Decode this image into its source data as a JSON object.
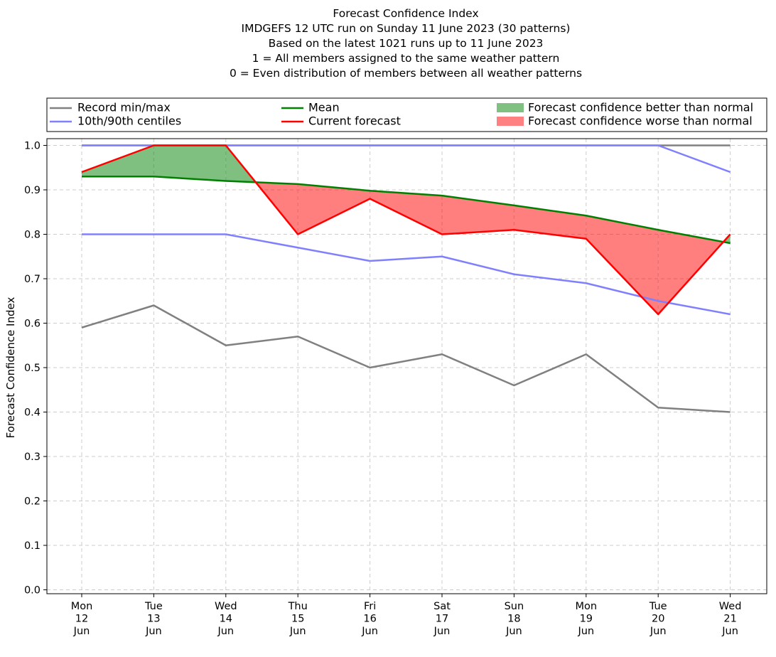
{
  "chart_data": {
    "type": "line",
    "title_lines": [
      "Forecast Confidence Index",
      "IMDGEFS 12 UTC run on Sunday 11 June 2023 (30 patterns)",
      "Based on the latest 1021 runs up to 11 June 2023",
      "1 = All members assigned to the same weather pattern",
      "0 = Even distribution of members between all weather patterns"
    ],
    "ylabel": "Forecast Confidence Index",
    "xlabel": "",
    "ylim": [
      0.0,
      1.0
    ],
    "y_ticks": [
      "0.0",
      "0.1",
      "0.2",
      "0.3",
      "0.4",
      "0.5",
      "0.6",
      "0.7",
      "0.8",
      "0.9",
      "1.0"
    ],
    "grid": true,
    "legend_position": "top, above plot",
    "categories": [
      [
        "Mon",
        "12",
        "Jun"
      ],
      [
        "Tue",
        "13",
        "Jun"
      ],
      [
        "Wed",
        "14",
        "Jun"
      ],
      [
        "Thu",
        "15",
        "Jun"
      ],
      [
        "Fri",
        "16",
        "Jun"
      ],
      [
        "Sat",
        "17",
        "Jun"
      ],
      [
        "Sun",
        "18",
        "Jun"
      ],
      [
        "Mon",
        "19",
        "Jun"
      ],
      [
        "Tue",
        "20",
        "Jun"
      ],
      [
        "Wed",
        "21",
        "Jun"
      ]
    ],
    "series": [
      {
        "key": "record_min",
        "name": "Record min/max",
        "color": "#808080",
        "values": [
          0.59,
          0.64,
          0.55,
          0.57,
          0.5,
          0.53,
          0.46,
          0.53,
          0.41,
          0.4
        ]
      },
      {
        "key": "record_max",
        "name": "Record min/max",
        "color": "#808080",
        "values": [
          1.0,
          1.0,
          1.0,
          1.0,
          1.0,
          1.0,
          1.0,
          1.0,
          1.0,
          1.0
        ]
      },
      {
        "key": "p10",
        "name": "10th/90th centiles",
        "color": "#8080ff",
        "values": [
          0.8,
          0.8,
          0.8,
          0.77,
          0.74,
          0.75,
          0.71,
          0.69,
          0.65,
          0.62
        ]
      },
      {
        "key": "p90",
        "name": "10th/90th centiles",
        "color": "#8080ff",
        "values": [
          1.0,
          1.0,
          1.0,
          1.0,
          1.0,
          1.0,
          1.0,
          1.0,
          1.0,
          0.94
        ]
      },
      {
        "key": "mean",
        "name": "Mean",
        "color": "#008000",
        "values": [
          0.93,
          0.93,
          0.92,
          0.913,
          0.898,
          0.887,
          0.865,
          0.842,
          0.81,
          0.78
        ]
      },
      {
        "key": "current",
        "name": "Current forecast",
        "color": "#ff0000",
        "values": [
          0.94,
          1.0,
          1.0,
          0.8,
          0.88,
          0.8,
          0.81,
          0.79,
          0.62,
          0.8
        ]
      }
    ],
    "fills": [
      {
        "name": "Forecast confidence better than normal",
        "color": "#008000",
        "opacity": 0.5,
        "where": "current > mean"
      },
      {
        "name": "Forecast confidence worse than normal",
        "color": "#ff0000",
        "opacity": 0.5,
        "where": "current < mean"
      }
    ],
    "legend": [
      {
        "label": "Record min/max",
        "kind": "line",
        "color": "#808080"
      },
      {
        "label": "10th/90th centiles",
        "kind": "line",
        "color": "#8080ff"
      },
      {
        "label": "Mean",
        "kind": "line",
        "color": "#008000"
      },
      {
        "label": "Current forecast",
        "kind": "line",
        "color": "#ff0000"
      },
      {
        "label": "Forecast confidence better than normal",
        "kind": "patch",
        "color": "#80c080"
      },
      {
        "label": "Forecast confidence worse than normal",
        "kind": "patch",
        "color": "#ff8080"
      }
    ]
  }
}
